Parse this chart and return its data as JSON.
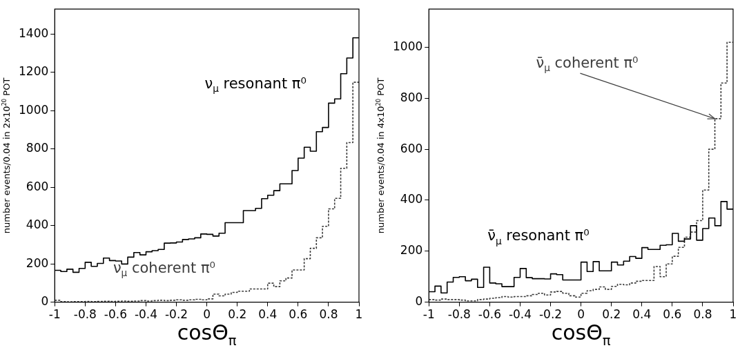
{
  "chart_data": [
    {
      "type": "histogram",
      "xlabel": "cosΘ$_{π}$",
      "ylabel": "number events/0.04 in 2x10$^{20}$ POT",
      "bins": [
        -1,
        -0.96,
        -0.92,
        -0.88,
        -0.84,
        -0.8,
        -0.76,
        -0.72,
        -0.68,
        -0.64,
        -0.6,
        -0.56,
        -0.52,
        -0.48,
        -0.44,
        -0.4,
        -0.36,
        -0.32,
        -0.28,
        -0.24,
        -0.2,
        -0.16,
        -0.12,
        -0.08,
        -0.04,
        0,
        0.04,
        0.08,
        0.12,
        0.16,
        0.2,
        0.24,
        0.28,
        0.32,
        0.36,
        0.4,
        0.44,
        0.48,
        0.52,
        0.56,
        0.6,
        0.64,
        0.68,
        0.72,
        0.76,
        0.8,
        0.84,
        0.88,
        0.92,
        0.96,
        1
      ],
      "series": [
        {
          "name": "ν$_{μ}$ resonant π⁰",
          "color": "#000000",
          "line_style": "solid",
          "values": [
            166,
            160,
            172,
            156,
            176,
            208,
            187,
            202,
            230,
            217,
            215,
            199,
            235,
            259,
            247,
            263,
            269,
            275,
            308,
            309,
            314,
            327,
            330,
            336,
            356,
            354,
            345,
            360,
            415,
            415,
            415,
            478,
            478,
            490,
            540,
            558,
            582,
            618,
            618,
            687,
            752,
            809,
            788,
            890,
            912,
            1039,
            1061,
            1193,
            1275,
            1380
          ]
        },
        {
          "name": "ν$_{μ}$ coherent π⁰",
          "color": "#3c3c3c",
          "line_style": "dotted",
          "values": [
            10,
            3,
            2,
            3,
            3,
            4,
            3,
            4,
            5,
            4,
            5,
            6,
            5,
            6,
            8,
            6,
            8,
            10,
            8,
            10,
            12,
            10,
            12,
            15,
            12,
            17,
            42,
            33,
            42,
            51,
            57,
            57,
            69,
            69,
            69,
            99,
            81,
            111,
            126,
            168,
            168,
            227,
            281,
            336,
            396,
            487,
            542,
            699,
            833,
            1148
          ]
        }
      ],
      "xlim": [
        -1,
        1
      ],
      "xticks": [
        -1,
        -0.8,
        -0.6,
        -0.4,
        -0.2,
        0,
        0.2,
        0.4,
        0.6,
        0.8,
        1
      ],
      "ylim": [
        0,
        1530
      ],
      "yticks": [
        0,
        200,
        400,
        600,
        800,
        1000,
        1200,
        1400
      ]
    },
    {
      "type": "histogram",
      "xlabel": "cosΘ$_{π}$",
      "ylabel": "number events/0.04 in 4x10$^{20}$ POT",
      "bins": [
        -1,
        -0.96,
        -0.92,
        -0.88,
        -0.84,
        -0.8,
        -0.76,
        -0.72,
        -0.68,
        -0.64,
        -0.6,
        -0.56,
        -0.52,
        -0.48,
        -0.44,
        -0.4,
        -0.36,
        -0.32,
        -0.28,
        -0.24,
        -0.2,
        -0.16,
        -0.12,
        -0.08,
        -0.04,
        0,
        0.04,
        0.08,
        0.12,
        0.16,
        0.2,
        0.24,
        0.28,
        0.32,
        0.36,
        0.4,
        0.44,
        0.48,
        0.52,
        0.56,
        0.6,
        0.64,
        0.68,
        0.72,
        0.76,
        0.8,
        0.84,
        0.88,
        0.92,
        0.96,
        1
      ],
      "series": [
        {
          "name": "ν̄$_{μ}$ resonant π⁰",
          "color": "#000000",
          "line_style": "solid",
          "values": [
            41,
            63,
            36,
            79,
            97,
            100,
            84,
            90,
            58,
            137,
            75,
            72,
            61,
            61,
            97,
            132,
            96,
            92,
            92,
            91,
            111,
            108,
            87,
            87,
            87,
            157,
            120,
            159,
            123,
            123,
            157,
            146,
            161,
            179,
            172,
            214,
            207,
            207,
            223,
            225,
            270,
            239,
            248,
            300,
            243,
            289,
            330,
            300,
            395,
            365
          ]
        },
        {
          "name": "ν̄$_{μ}$ coherent π⁰",
          "color": "#3c3c3c",
          "line_style": "dotted",
          "values": [
            10,
            8,
            12,
            10,
            10,
            8,
            5,
            5,
            10,
            12,
            15,
            18,
            22,
            20,
            22,
            22,
            25,
            30,
            35,
            28,
            40,
            42,
            35,
            25,
            20,
            35,
            45,
            50,
            60,
            50,
            62,
            70,
            68,
            75,
            82,
            85,
            85,
            140,
            100,
            150,
            180,
            215,
            255,
            275,
            320,
            440,
            600,
            720,
            860,
            1020
          ]
        }
      ],
      "xlim": [
        -1,
        1
      ],
      "xticks": [
        -1,
        -0.8,
        -0.6,
        -0.4,
        -0.2,
        0,
        0.2,
        0.4,
        0.6,
        0.8,
        1
      ],
      "ylim": [
        0,
        1150
      ],
      "yticks": [
        0,
        200,
        400,
        600,
        800,
        1000
      ]
    }
  ]
}
